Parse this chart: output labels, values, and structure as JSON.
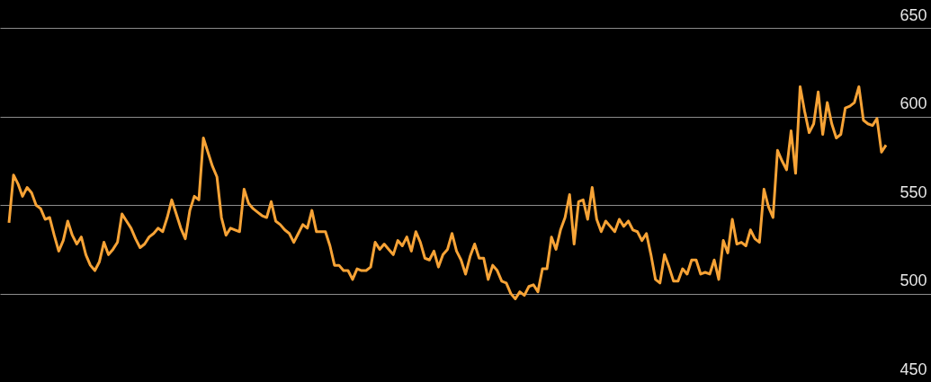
{
  "chart_data": {
    "type": "line",
    "categories": [
      null,
      null,
      null,
      null,
      null,
      null,
      null,
      null,
      null,
      null,
      null,
      null,
      null,
      null,
      null,
      null,
      null,
      null,
      null,
      null,
      null,
      null,
      null,
      null,
      null,
      null,
      null,
      null,
      null,
      null,
      null,
      null,
      null,
      null,
      null,
      null,
      null,
      null,
      null,
      null,
      null,
      null,
      null,
      null,
      null,
      null,
      null,
      null,
      null,
      null,
      null,
      null,
      null,
      null,
      null,
      null,
      null,
      null,
      null,
      null,
      null,
      null,
      null,
      null,
      null,
      null,
      null,
      null,
      null,
      null,
      null,
      null,
      null,
      null,
      null,
      null,
      null,
      null,
      null,
      null,
      null,
      null,
      null,
      null,
      null,
      null,
      null,
      null,
      null,
      null,
      null,
      null,
      null,
      null,
      null,
      null,
      null,
      null,
      null,
      null,
      null,
      null,
      null,
      null,
      null,
      null,
      null,
      null,
      null,
      null,
      null,
      null,
      null,
      null,
      null,
      null,
      null,
      null,
      null,
      null,
      null,
      null,
      null,
      null,
      null,
      null,
      null,
      null,
      null,
      null,
      null,
      null,
      null,
      null,
      null,
      null,
      null,
      null,
      null,
      null,
      null,
      null,
      null,
      null,
      null,
      null,
      null,
      null,
      null,
      null,
      null,
      null,
      null,
      null,
      null,
      null,
      null,
      null,
      null,
      null,
      null,
      null,
      null,
      null,
      null,
      null,
      null,
      null,
      null,
      null,
      null,
      null,
      null,
      null,
      null,
      null,
      null,
      null,
      null,
      null,
      null,
      null,
      null,
      null,
      null,
      null,
      null,
      null,
      null,
      null,
      null,
      null,
      null,
      null,
      null
    ],
    "series": [
      {
        "color": "#f7a336",
        "values": [
          540,
          567,
          562,
          555,
          560,
          557,
          550,
          548,
          542,
          543,
          533,
          524,
          530,
          541,
          533,
          528,
          532,
          522,
          516,
          513,
          518,
          529,
          522,
          525,
          529,
          545,
          541,
          537,
          531,
          526,
          528,
          532,
          534,
          537,
          535,
          543,
          553,
          545,
          537,
          531,
          547,
          555,
          553,
          588,
          580,
          572,
          566,
          543,
          533,
          537,
          536,
          535,
          559,
          551,
          548,
          546,
          544,
          543,
          552,
          541,
          539,
          536,
          534,
          529,
          534,
          539,
          537,
          547,
          535,
          535,
          535,
          527,
          516,
          516,
          513,
          513,
          508,
          514,
          513,
          513,
          515,
          529,
          525,
          528,
          525,
          522,
          530,
          527,
          532,
          524,
          535,
          529,
          520,
          519,
          524,
          515,
          522,
          525,
          534,
          524,
          519,
          511,
          521,
          528,
          520,
          520,
          508,
          516,
          513,
          507,
          506,
          500,
          497,
          501,
          499,
          504,
          505,
          501,
          514,
          514,
          532,
          525,
          536,
          543,
          556,
          528,
          552,
          553,
          542,
          560,
          542,
          535,
          541,
          538,
          535,
          542,
          538,
          541,
          536,
          535,
          530,
          534,
          522,
          508,
          506,
          522,
          515,
          507,
          507,
          514,
          511,
          519,
          519,
          511,
          512,
          511,
          519,
          508,
          530,
          523,
          542,
          528,
          529,
          527,
          536,
          531,
          529,
          559,
          549,
          543,
          581,
          575,
          570,
          592,
          568,
          617,
          603,
          591,
          596,
          614,
          590,
          608,
          596,
          588,
          590,
          605,
          606,
          608,
          617,
          598,
          596,
          595,
          599,
          580,
          584
        ]
      }
    ],
    "ylim": [
      450,
      666
    ],
    "yticks": [
      450,
      500,
      550,
      600,
      650
    ],
    "grid": "y",
    "tick_labels": "y",
    "marker": "none",
    "line_style": "solid"
  }
}
